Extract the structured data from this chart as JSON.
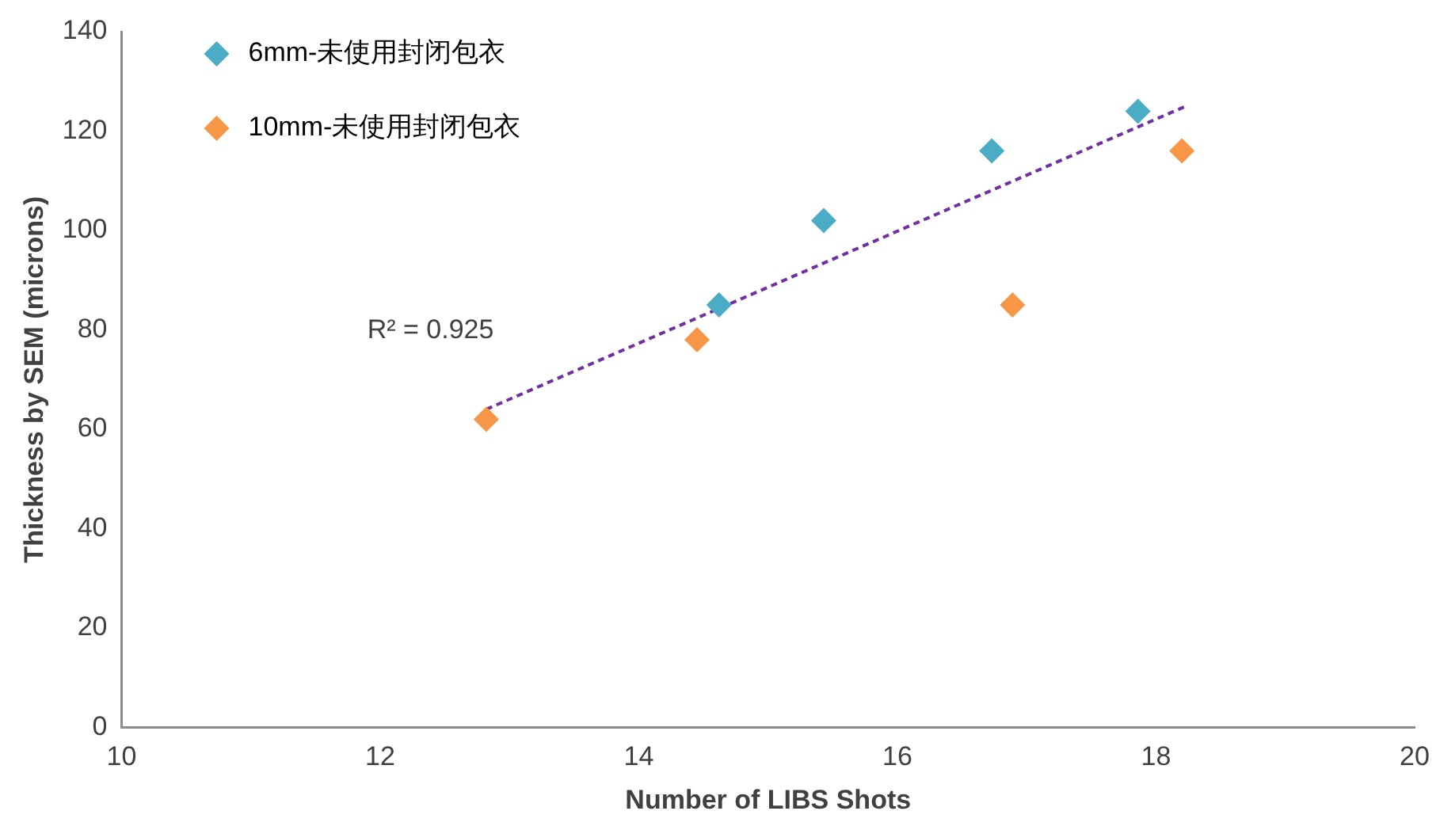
{
  "chart_data": {
    "type": "scatter",
    "xlabel": "Number of LIBS Shots",
    "ylabel": "Thickness by SEM (microns)",
    "xlim": [
      10,
      20
    ],
    "xticks": [
      10,
      12,
      14,
      16,
      18,
      20
    ],
    "ylim": [
      0,
      140
    ],
    "yticks": [
      0,
      20,
      40,
      60,
      80,
      100,
      120,
      140
    ],
    "grid": false,
    "legend": "top left",
    "marker": "diamond",
    "annotations": [
      "R² = 0.925"
    ],
    "series": [
      {
        "name": "6mm-未使用封闭包衣",
        "color": "#4bacc6",
        "x": [
          14.62,
          15.43,
          16.73,
          17.86
        ],
        "values": [
          85,
          102,
          116,
          124
        ]
      },
      {
        "name": "10mm-未使用封闭包衣",
        "color": "#f79646",
        "x": [
          12.82,
          14.45,
          16.89,
          18.2
        ],
        "values": [
          62,
          78,
          85,
          116
        ]
      },
      {
        "type": "line",
        "color": "#7030a0",
        "line_style": "dashed",
        "marker": "none",
        "x": [
          12.82,
          18.23
        ],
        "values": [
          64,
          125
        ]
      }
    ]
  }
}
